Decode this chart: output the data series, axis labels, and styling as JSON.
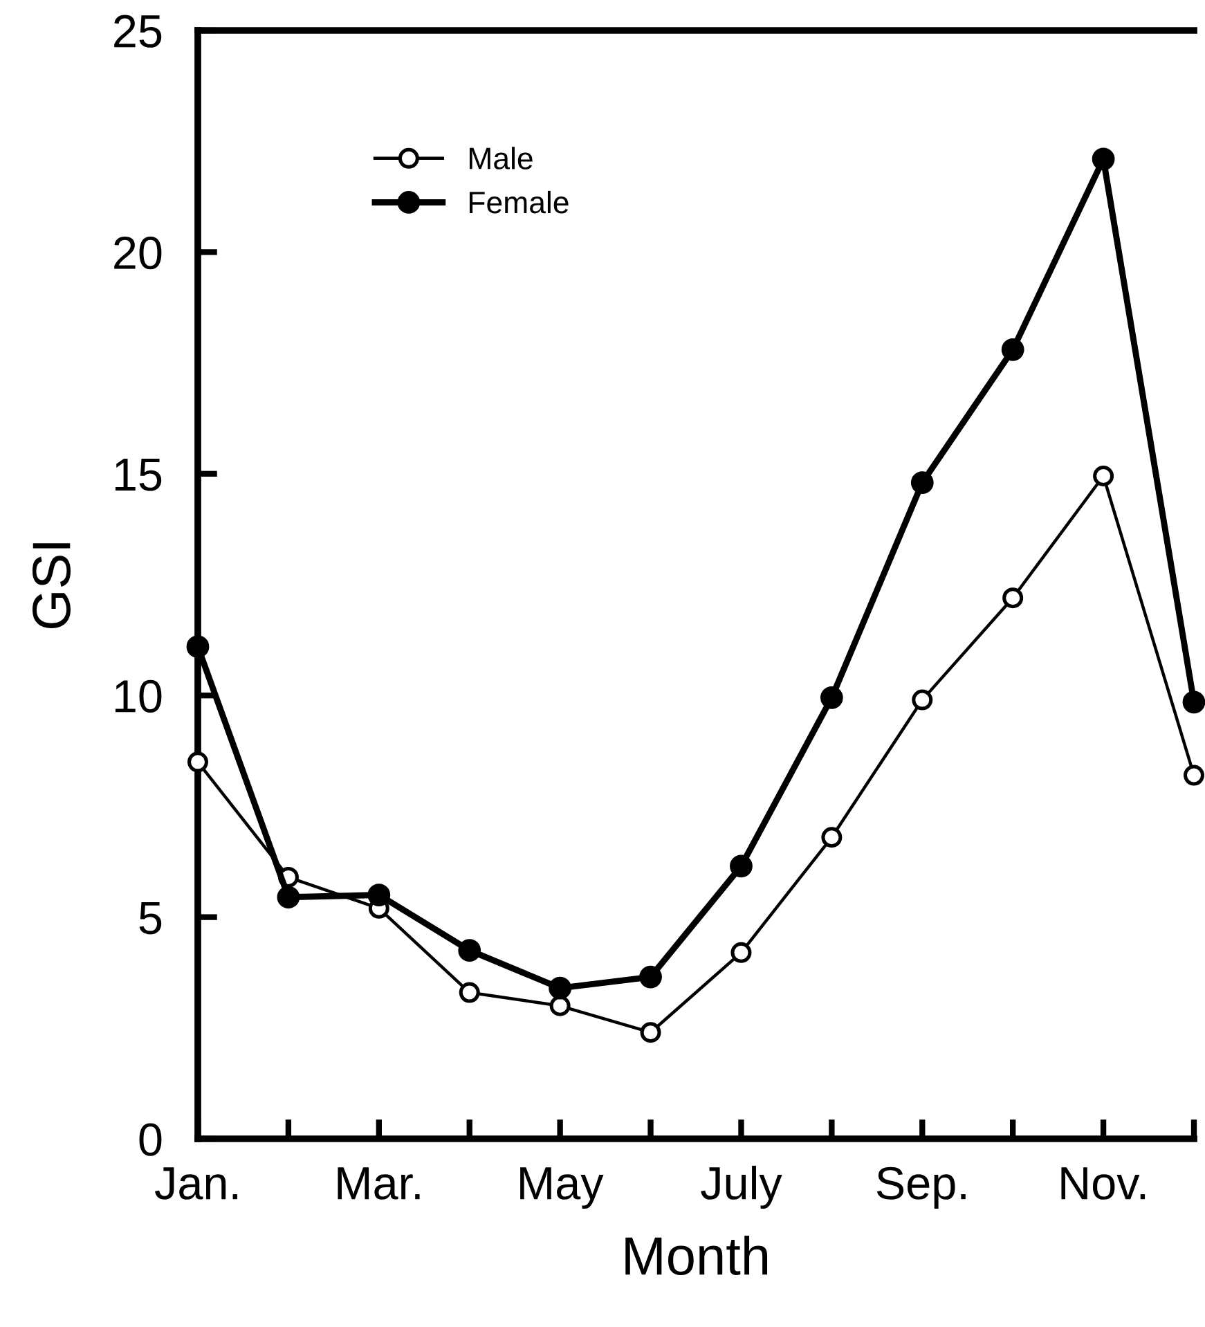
{
  "chart_data": {
    "type": "line",
    "xlabel": "Month",
    "ylabel": "GSI",
    "categories": [
      "Jan.",
      null,
      "Mar.",
      null,
      "May",
      null,
      "July",
      null,
      "Sep.",
      null,
      "Nov.",
      null
    ],
    "series": [
      {
        "name": "Male",
        "color": "#000000",
        "values": [
          8.5,
          5.9,
          5.2,
          3.3,
          3.0,
          2.4,
          4.2,
          6.8,
          9.9,
          12.2,
          14.95,
          8.2
        ]
      },
      {
        "name": "Female",
        "color": "#000000",
        "values": [
          11.1,
          5.45,
          5.5,
          4.25,
          3.4,
          3.65,
          6.15,
          9.95,
          14.8,
          17.8,
          22.1,
          9.85
        ]
      }
    ],
    "ylim": [
      0,
      25
    ],
    "yticks": [
      0,
      5,
      10,
      15,
      20,
      25
    ],
    "marker": "circle",
    "legend": "top left",
    "grid": false
  }
}
